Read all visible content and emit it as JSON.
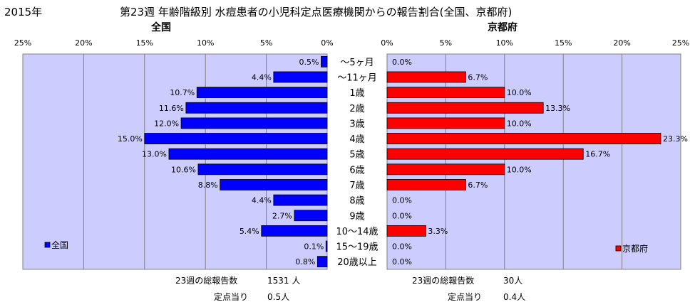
{
  "header": {
    "year": "2015年",
    "title": "第23週 年齢階級別 水痘患者の小児科定点医療機関からの報告割合(全国、京都府)"
  },
  "colors": {
    "national": "#0000ff",
    "kyoto": "#ff0000",
    "plot_bg": "#ccccff"
  },
  "chart_data": [
    {
      "type": "bar",
      "orientation": "horizontal",
      "direction": "right-to-left",
      "title": "全国",
      "categories": [
        "～5ヶ月",
        "～11ヶ月",
        "1歳",
        "2歳",
        "3歳",
        "4歳",
        "5歳",
        "6歳",
        "7歳",
        "8歳",
        "9歳",
        "10～14歳",
        "15～19歳",
        "20歳以上"
      ],
      "series": [
        {
          "name": "全国",
          "values": [
            0.5,
            4.4,
            10.7,
            11.6,
            12.0,
            15.0,
            13.0,
            10.6,
            8.8,
            4.4,
            2.7,
            5.4,
            0.1,
            0.8
          ]
        }
      ],
      "data_labels": [
        "0.5%",
        "4.4%",
        "10.7%",
        "11.6%",
        "12.0%",
        "15.0%",
        "13.0%",
        "10.6%",
        "8.8%",
        "4.4%",
        "2.7%",
        "5.4%",
        "0.1%",
        "0.8%"
      ],
      "xlim": [
        0,
        25
      ],
      "ticks": [
        "25%",
        "20%",
        "15%",
        "10%",
        "5%",
        "0%"
      ],
      "grid": true,
      "legend": "bottom-left"
    },
    {
      "type": "bar",
      "orientation": "horizontal",
      "direction": "left-to-right",
      "title": "京都府",
      "categories": [
        "～5ヶ月",
        "～11ヶ月",
        "1歳",
        "2歳",
        "3歳",
        "4歳",
        "5歳",
        "6歳",
        "7歳",
        "8歳",
        "9歳",
        "10～14歳",
        "15～19歳",
        "20歳以上"
      ],
      "series": [
        {
          "name": "京都府",
          "values": [
            0.0,
            6.7,
            10.0,
            13.3,
            10.0,
            23.3,
            16.7,
            10.0,
            6.7,
            0.0,
            0.0,
            3.3,
            0.0,
            0.0
          ]
        }
      ],
      "data_labels": [
        "0.0%",
        "6.7%",
        "10.0%",
        "13.3%",
        "10.0%",
        "23.3%",
        "16.7%",
        "10.0%",
        "6.7%",
        "0.0%",
        "0.0%",
        "3.3%",
        "0.0%",
        "0.0%"
      ],
      "xlim": [
        0,
        25
      ],
      "ticks": [
        "0%",
        "5%",
        "10%",
        "15%",
        "20%",
        "25%"
      ],
      "grid": true,
      "legend": "bottom-right"
    }
  ],
  "footer": {
    "national_total_label": "23週の総報告数",
    "national_total_value": "1531 人",
    "national_per_label": "定点当り",
    "national_per_value": "0.5人",
    "kyoto_total_label": "23週の総報告数",
    "kyoto_total_value": "30人",
    "kyoto_per_label": "定点当り",
    "kyoto_per_value": "0.4人"
  }
}
